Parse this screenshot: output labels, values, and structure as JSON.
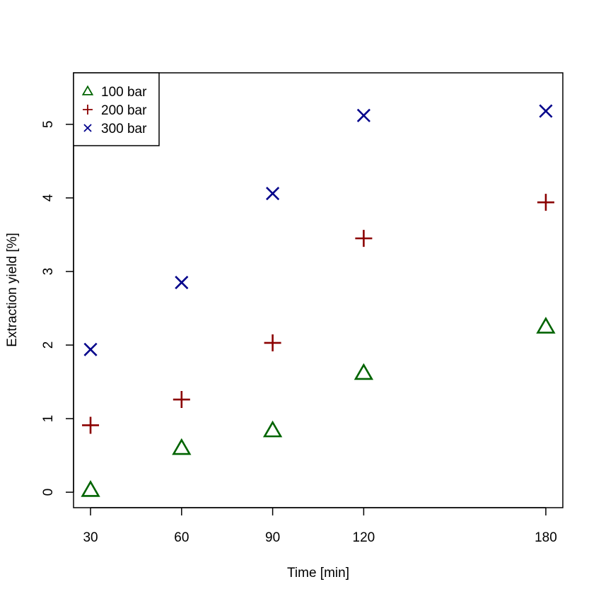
{
  "chart_data": {
    "type": "scatter",
    "title": "",
    "xlabel": "Time [min]",
    "ylabel": "Extraction yield [%]",
    "xlim": [
      24.4,
      185.6
    ],
    "ylim": [
      -0.21,
      5.7
    ],
    "xticks": [
      30,
      60,
      90,
      120,
      180
    ],
    "yticks": [
      0,
      1,
      2,
      3,
      4,
      5
    ],
    "grid": false,
    "legend_position": "top-left",
    "series": [
      {
        "name": "100 bar",
        "marker": "triangle",
        "color": "#006400",
        "points": [
          [
            30,
            0.03
          ],
          [
            60,
            0.6
          ],
          [
            90,
            0.84
          ],
          [
            120,
            1.62
          ],
          [
            180,
            2.25
          ]
        ]
      },
      {
        "name": "200 bar",
        "marker": "plus",
        "color": "#8B0000",
        "points": [
          [
            30,
            0.91
          ],
          [
            60,
            1.26
          ],
          [
            90,
            2.03
          ],
          [
            120,
            3.45
          ],
          [
            180,
            3.94
          ]
        ]
      },
      {
        "name": "300 bar",
        "marker": "cross",
        "color": "#00008B",
        "points": [
          [
            30,
            1.94
          ],
          [
            60,
            2.85
          ],
          [
            90,
            4.06
          ],
          [
            120,
            5.12
          ],
          [
            180,
            5.18
          ]
        ]
      }
    ]
  }
}
